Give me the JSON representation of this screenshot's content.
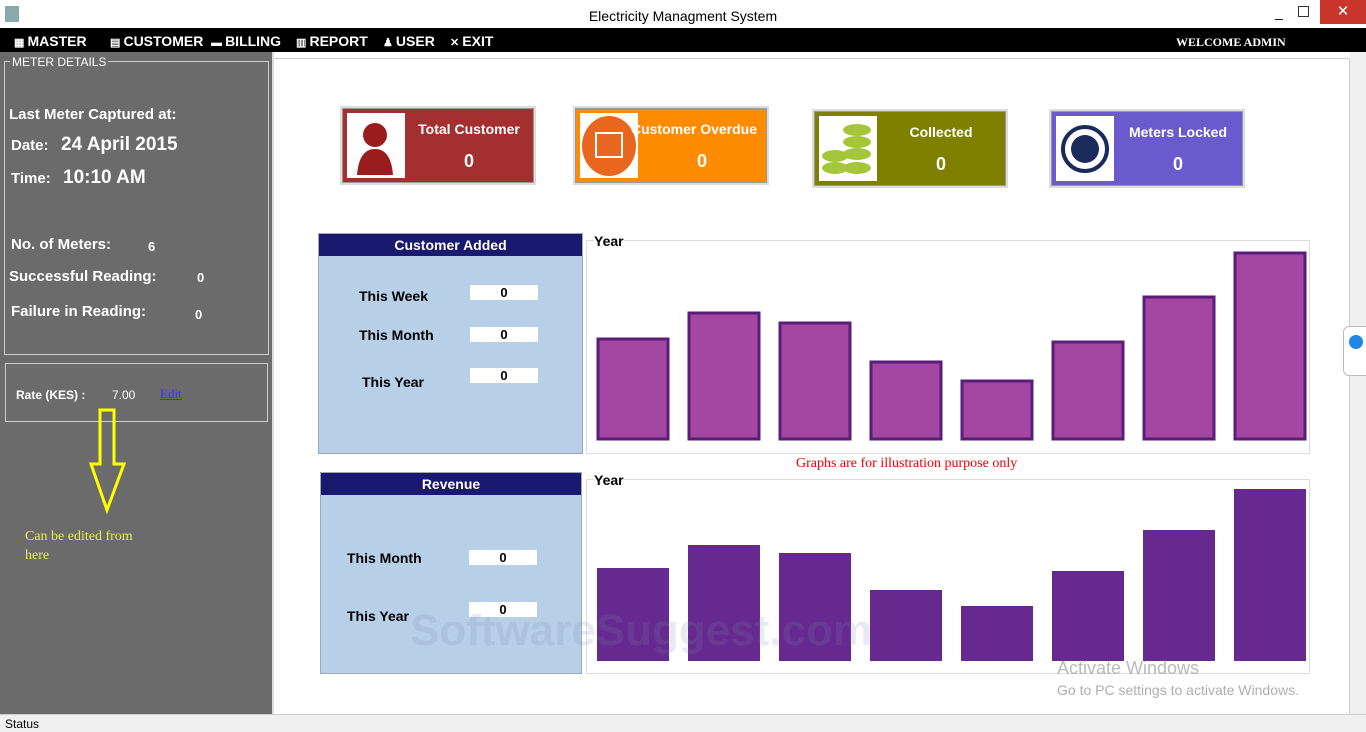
{
  "window": {
    "title": "Electricity Managment System"
  },
  "menu": {
    "items": [
      "MASTER",
      "CUSTOMER",
      "BILLING",
      "REPORT",
      "USER",
      "EXIT"
    ],
    "welcome": "WELCOME ADMIN"
  },
  "meter_details": {
    "title": "METER DETAILS",
    "last_captured": "Last Meter Captured at:",
    "date_label": "Date:",
    "date": "24 April 2015",
    "time_label": "Time:",
    "time": "10:10 AM",
    "meters_label": "No. of Meters:",
    "meters": 6,
    "success_label": "Successful Reading:",
    "success": 0,
    "failure_label": "Failure in Reading:",
    "failure": 0
  },
  "rate": {
    "label": "Rate (KES) :",
    "value": "7.00",
    "edit": "Edit"
  },
  "annotation": "Can be edited from here",
  "cards": [
    {
      "label": "Total Customer",
      "value": 0
    },
    {
      "label": "Customer Overdue",
      "value": 0
    },
    {
      "label": "Collected",
      "value": 0
    },
    {
      "label": "Meters Locked",
      "value": 0
    }
  ],
  "customer_added": {
    "title": "Customer Added",
    "rows": [
      {
        "label": "This Week",
        "value": 0
      },
      {
        "label": "This Month",
        "value": 0
      },
      {
        "label": "This Year",
        "value": 0
      }
    ]
  },
  "customer_chart": {
    "title": "Year"
  },
  "note": "Graphs are for illustration purpose only",
  "revenue": {
    "title": "Revenue",
    "rows": [
      {
        "label": "This Month",
        "value": 0
      },
      {
        "label": "This Year",
        "value": 0
      }
    ]
  },
  "revenue_chart": {
    "title": "Year"
  },
  "watermark": "SoftwareSuggest.com",
  "activation": {
    "title": "Activate Windows",
    "subtitle": "Go to PC settings to activate Windows."
  },
  "status": "Status"
}
